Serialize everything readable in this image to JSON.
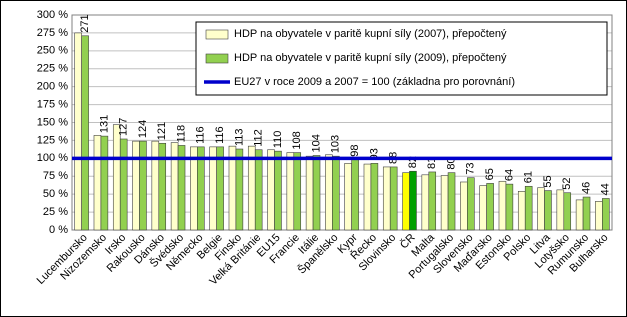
{
  "chart_data": {
    "type": "bar",
    "categories": [
      "Lucembursko",
      "Nizozemsko",
      "Irsko",
      "Rakousko",
      "Dánsko",
      "Švédsko",
      "Německo",
      "Belgie",
      "Finsko",
      "Velká Británie",
      "EU15",
      "Francie",
      "Itálie",
      "Španělsko",
      "Kypr",
      "Řecko",
      "Slovinsko",
      "ČR",
      "Malta",
      "Portugalsko",
      "Slovensko",
      "Maďarsko",
      "Estonsko",
      "Polsko",
      "Litva",
      "Lotyšsko",
      "Rumunsko",
      "Bulharsko"
    ],
    "series": [
      {
        "name": "HDP na obyvatele v paritě kupní síly (2007), přepočtený",
        "color": "#ffffcc",
        "highlight_color": "#ffff00",
        "values": [
          275,
          132,
          147,
          124,
          124,
          122,
          116,
          116,
          117,
          117,
          112,
          108,
          103,
          105,
          93,
          92,
          88,
          80,
          77,
          76,
          67,
          62,
          68,
          54,
          59,
          56,
          42,
          40
        ]
      },
      {
        "name": "HDP na obyvatele v paritě kupní síly (2009), přepočtený",
        "color": "#92d050",
        "highlight_color": "#00a000",
        "values": [
          271,
          131,
          127,
          124,
          121,
          118,
          116,
          116,
          113,
          112,
          110,
          108,
          104,
          103,
          98,
          93,
          88,
          82,
          81,
          80,
          73,
          65,
          64,
          61,
          55,
          52,
          46,
          44
        ]
      }
    ],
    "highlight_category": "ČR",
    "reference_line": {
      "name": "EU27 v roce 2009 a 2007 = 100 (základna pro porovnání)",
      "value": 100,
      "color": "#0000cc"
    },
    "ylim": [
      0,
      300
    ],
    "yticks": [
      {
        "value": 0,
        "label": "0 %"
      },
      {
        "value": 25,
        "label": "25 %"
      },
      {
        "value": 50,
        "label": "50 %"
      },
      {
        "value": 75,
        "label": "75 %"
      },
      {
        "value": 100,
        "label": "100 %"
      },
      {
        "value": 125,
        "label": "125 %"
      },
      {
        "value": 150,
        "label": "150 %"
      },
      {
        "value": 175,
        "label": "175 %"
      },
      {
        "value": 200,
        "label": "200 %"
      },
      {
        "value": 225,
        "label": "225 %"
      },
      {
        "value": 250,
        "label": "250 %"
      },
      {
        "value": 275,
        "label": "275 %"
      },
      {
        "value": 300,
        "label": "300 %"
      }
    ],
    "grid": true,
    "legend": "upper right"
  }
}
